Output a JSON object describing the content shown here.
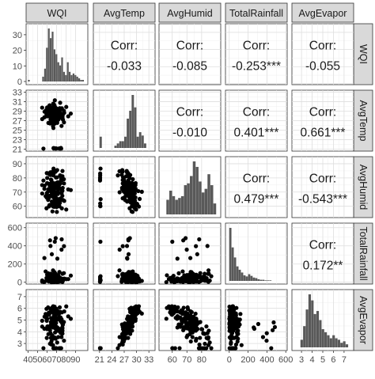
{
  "chart_data": {
    "type": "scatter_matrix",
    "variables": [
      "WQI",
      "AvgTemp",
      "AvgHumid",
      "TotalRainfall",
      "AvgEvapor"
    ],
    "strip_labels": [
      "WQI",
      "AvgTemp",
      "AvgHumid",
      "TotalRainfall",
      "AvgEvapor"
    ],
    "corr_label": "Corr:",
    "correlations": [
      {
        "row": 0,
        "col": 1,
        "text": "-0.033"
      },
      {
        "row": 0,
        "col": 2,
        "text": "-0.085"
      },
      {
        "row": 0,
        "col": 3,
        "text": "-0.253***"
      },
      {
        "row": 0,
        "col": 4,
        "text": "-0.055"
      },
      {
        "row": 1,
        "col": 2,
        "text": "-0.010"
      },
      {
        "row": 1,
        "col": 3,
        "text": "0.401***"
      },
      {
        "row": 1,
        "col": 4,
        "text": "0.661***"
      },
      {
        "row": 2,
        "col": 3,
        "text": "0.479***"
      },
      {
        "row": 2,
        "col": 4,
        "text": "-0.543***"
      },
      {
        "row": 3,
        "col": 4,
        "text": "0.172**"
      }
    ],
    "axes": {
      "x": [
        {
          "range": [
            38,
            103
          ],
          "ticks": [
            40,
            50,
            60,
            70,
            80,
            90
          ],
          "labels": [
            "40",
            "50",
            "60",
            "70",
            "80",
            "90"
          ]
        },
        {
          "range": [
            19.5,
            34.5
          ],
          "ticks": [
            21,
            24,
            27,
            30,
            33
          ],
          "labels": [
            "21",
            "24",
            "27",
            "30",
            "33"
          ]
        },
        {
          "range": [
            51,
            93
          ],
          "ticks": [
            60,
            70,
            80
          ],
          "labels": [
            "60",
            "70",
            "80"
          ]
        },
        {
          "range": [
            -40,
            615
          ],
          "ticks": [
            0,
            200,
            400,
            600
          ],
          "labels": [
            "0",
            "200",
            "400",
            "600"
          ]
        },
        {
          "range": [
            2.1,
            7.9
          ],
          "ticks": [
            3,
            4,
            5,
            6,
            7
          ],
          "labels": [
            "3",
            "4",
            "5",
            "6",
            "7"
          ]
        }
      ],
      "y": [
        {
          "range": [
            -0.5,
            35
          ],
          "ticks": [
            0,
            10,
            20,
            30
          ],
          "labels": [
            "0",
            "10",
            "20",
            "30"
          ]
        },
        {
          "range": [
            20.6,
            33.4
          ],
          "ticks": [
            21,
            23,
            25,
            27,
            29,
            31,
            33
          ],
          "labels": [
            "21",
            "23",
            "25",
            "27",
            "29",
            "31",
            "33"
          ]
        },
        {
          "range": [
            52,
            95
          ],
          "ticks": [
            60,
            70,
            80,
            90
          ],
          "labels": [
            "60",
            "70",
            "80",
            "90"
          ]
        },
        {
          "range": [
            -20,
            650
          ],
          "ticks": [
            0,
            200,
            400,
            600
          ],
          "labels": [
            "0",
            "200",
            "400",
            "600"
          ]
        },
        {
          "range": [
            2.4,
            7.6
          ],
          "ticks": [
            3,
            4,
            5,
            6,
            7
          ],
          "labels": [
            "3",
            "4",
            "5",
            "6",
            "7"
          ]
        }
      ]
    },
    "histograms": [
      {
        "variable": "WQI",
        "bin_starts": [
          40,
          44,
          48,
          52,
          55,
          57,
          59,
          61,
          63,
          65,
          67,
          69,
          71,
          73,
          75,
          77,
          79,
          81,
          83,
          85,
          87,
          89,
          91,
          93,
          95,
          97,
          99
        ],
        "bin_width": 2,
        "counts": [
          1,
          0,
          0,
          0,
          3,
          8,
          21,
          33,
          27,
          31,
          20,
          17,
          12,
          10,
          15,
          6,
          4,
          12,
          6,
          4,
          5,
          4,
          3,
          2,
          1,
          1,
          0
        ]
      },
      {
        "variable": "AvgTemp",
        "bin_starts": [
          21.0,
          21.6,
          22.2,
          22.8,
          23.4,
          24.0,
          24.6,
          25.2,
          25.8,
          26.4,
          27.0,
          27.6,
          28.2,
          28.8,
          29.4,
          30.0,
          30.6,
          31.2,
          31.8
        ],
        "bin_width": 0.6,
        "counts": [
          10,
          0,
          0,
          0,
          0,
          0,
          2,
          4,
          6,
          6,
          10,
          26,
          33,
          47,
          36,
          10,
          14,
          11,
          4
        ]
      },
      {
        "variable": "AvgHumid",
        "bin_starts": [
          56,
          58,
          60,
          62,
          64,
          66,
          68,
          70,
          72,
          74,
          76,
          78,
          80,
          82,
          84,
          86,
          88
        ],
        "bin_width": 2,
        "counts": [
          8,
          13,
          10,
          8,
          9,
          10,
          16,
          17,
          21,
          29,
          26,
          18,
          12,
          14,
          22,
          16,
          6
        ]
      },
      {
        "variable": "TotalRainfall",
        "bin_starts": [
          0,
          25,
          50,
          75,
          100,
          125,
          150,
          175,
          200,
          225,
          250,
          275,
          300,
          325,
          350,
          375,
          400,
          425
        ],
        "bin_width": 25,
        "counts": [
          95,
          60,
          42,
          26,
          20,
          15,
          10,
          8,
          12,
          9,
          6,
          5,
          3,
          2,
          2,
          1,
          1,
          1
        ]
      },
      {
        "variable": "AvgEvapor",
        "bin_starts": [
          2.9,
          3.15,
          3.4,
          3.65,
          3.9,
          4.15,
          4.4,
          4.65,
          4.9,
          5.15,
          5.4,
          5.65,
          5.9,
          6.15,
          6.4,
          6.65,
          6.9,
          7.15
        ],
        "bin_width": 0.25,
        "counts": [
          5,
          14,
          25,
          35,
          31,
          22,
          24,
          18,
          12,
          10,
          8,
          6,
          8,
          6,
          5,
          3,
          4,
          2
        ]
      }
    ]
  }
}
